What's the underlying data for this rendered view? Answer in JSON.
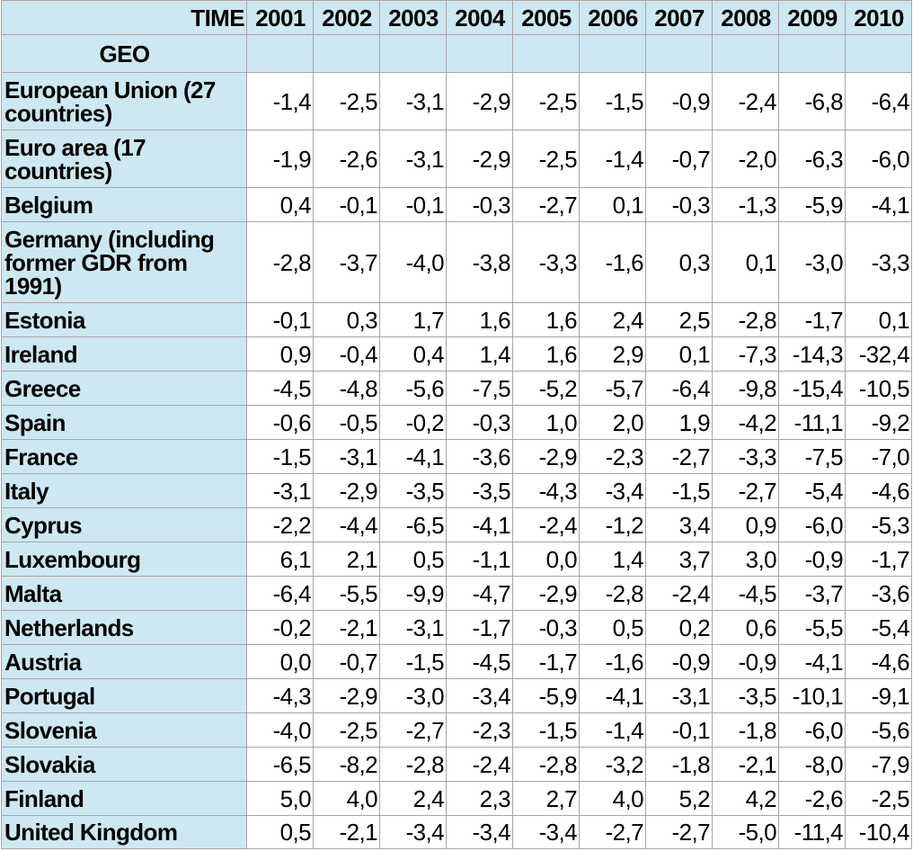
{
  "header": {
    "time_label": "TIME",
    "geo_label": "GEO",
    "years": [
      "2001",
      "2002",
      "2003",
      "2004",
      "2005",
      "2006",
      "2007",
      "2008",
      "2009",
      "2010"
    ]
  },
  "rows": [
    {
      "geo": "European Union (27 countries)",
      "values": [
        "-1,4",
        "-2,5",
        "-3,1",
        "-2,9",
        "-2,5",
        "-1,5",
        "-0,9",
        "-2,4",
        "-6,8",
        "-6,4"
      ]
    },
    {
      "geo": "Euro area (17 countries)",
      "values": [
        "-1,9",
        "-2,6",
        "-3,1",
        "-2,9",
        "-2,5",
        "-1,4",
        "-0,7",
        "-2,0",
        "-6,3",
        "-6,0"
      ]
    },
    {
      "geo": "Belgium",
      "values": [
        "0,4",
        "-0,1",
        "-0,1",
        "-0,3",
        "-2,7",
        "0,1",
        "-0,3",
        "-1,3",
        "-5,9",
        "-4,1"
      ]
    },
    {
      "geo": "Germany (including former GDR from 1991)",
      "values": [
        "-2,8",
        "-3,7",
        "-4,0",
        "-3,8",
        "-3,3",
        "-1,6",
        "0,3",
        "0,1",
        "-3,0",
        "-3,3"
      ]
    },
    {
      "geo": "Estonia",
      "values": [
        "-0,1",
        "0,3",
        "1,7",
        "1,6",
        "1,6",
        "2,4",
        "2,5",
        "-2,8",
        "-1,7",
        "0,1"
      ]
    },
    {
      "geo": "Ireland",
      "values": [
        "0,9",
        "-0,4",
        "0,4",
        "1,4",
        "1,6",
        "2,9",
        "0,1",
        "-7,3",
        "-14,3",
        "-32,4"
      ]
    },
    {
      "geo": "Greece",
      "values": [
        "-4,5",
        "-4,8",
        "-5,6",
        "-7,5",
        "-5,2",
        "-5,7",
        "-6,4",
        "-9,8",
        "-15,4",
        "-10,5"
      ]
    },
    {
      "geo": "Spain",
      "values": [
        "-0,6",
        "-0,5",
        "-0,2",
        "-0,3",
        "1,0",
        "2,0",
        "1,9",
        "-4,2",
        "-11,1",
        "-9,2"
      ]
    },
    {
      "geo": "France",
      "values": [
        "-1,5",
        "-3,1",
        "-4,1",
        "-3,6",
        "-2,9",
        "-2,3",
        "-2,7",
        "-3,3",
        "-7,5",
        "-7,0"
      ]
    },
    {
      "geo": "Italy",
      "values": [
        "-3,1",
        "-2,9",
        "-3,5",
        "-3,5",
        "-4,3",
        "-3,4",
        "-1,5",
        "-2,7",
        "-5,4",
        "-4,6"
      ]
    },
    {
      "geo": "Cyprus",
      "values": [
        "-2,2",
        "-4,4",
        "-6,5",
        "-4,1",
        "-2,4",
        "-1,2",
        "3,4",
        "0,9",
        "-6,0",
        "-5,3"
      ]
    },
    {
      "geo": "Luxembourg",
      "values": [
        "6,1",
        "2,1",
        "0,5",
        "-1,1",
        "0,0",
        "1,4",
        "3,7",
        "3,0",
        "-0,9",
        "-1,7"
      ]
    },
    {
      "geo": "Malta",
      "values": [
        "-6,4",
        "-5,5",
        "-9,9",
        "-4,7",
        "-2,9",
        "-2,8",
        "-2,4",
        "-4,5",
        "-3,7",
        "-3,6"
      ]
    },
    {
      "geo": "Netherlands",
      "values": [
        "-0,2",
        "-2,1",
        "-3,1",
        "-1,7",
        "-0,3",
        "0,5",
        "0,2",
        "0,6",
        "-5,5",
        "-5,4"
      ]
    },
    {
      "geo": "Austria",
      "values": [
        "0,0",
        "-0,7",
        "-1,5",
        "-4,5",
        "-1,7",
        "-1,6",
        "-0,9",
        "-0,9",
        "-4,1",
        "-4,6"
      ]
    },
    {
      "geo": "Portugal",
      "values": [
        "-4,3",
        "-2,9",
        "-3,0",
        "-3,4",
        "-5,9",
        "-4,1",
        "-3,1",
        "-3,5",
        "-10,1",
        "-9,1"
      ]
    },
    {
      "geo": "Slovenia",
      "values": [
        "-4,0",
        "-2,5",
        "-2,7",
        "-2,3",
        "-1,5",
        "-1,4",
        "-0,1",
        "-1,8",
        "-6,0",
        "-5,6"
      ]
    },
    {
      "geo": "Slovakia",
      "values": [
        "-6,5",
        "-8,2",
        "-2,8",
        "-2,4",
        "-2,8",
        "-3,2",
        "-1,8",
        "-2,1",
        "-8,0",
        "-7,9"
      ]
    },
    {
      "geo": "Finland",
      "values": [
        "5,0",
        "4,0",
        "2,4",
        "2,3",
        "2,7",
        "4,0",
        "5,2",
        "4,2",
        "-2,6",
        "-2,5"
      ]
    },
    {
      "geo": "United Kingdom",
      "values": [
        "0,5",
        "-2,1",
        "-3,4",
        "-3,4",
        "-3,4",
        "-2,7",
        "-2,7",
        "-5,0",
        "-11,4",
        "-10,4"
      ]
    }
  ]
}
